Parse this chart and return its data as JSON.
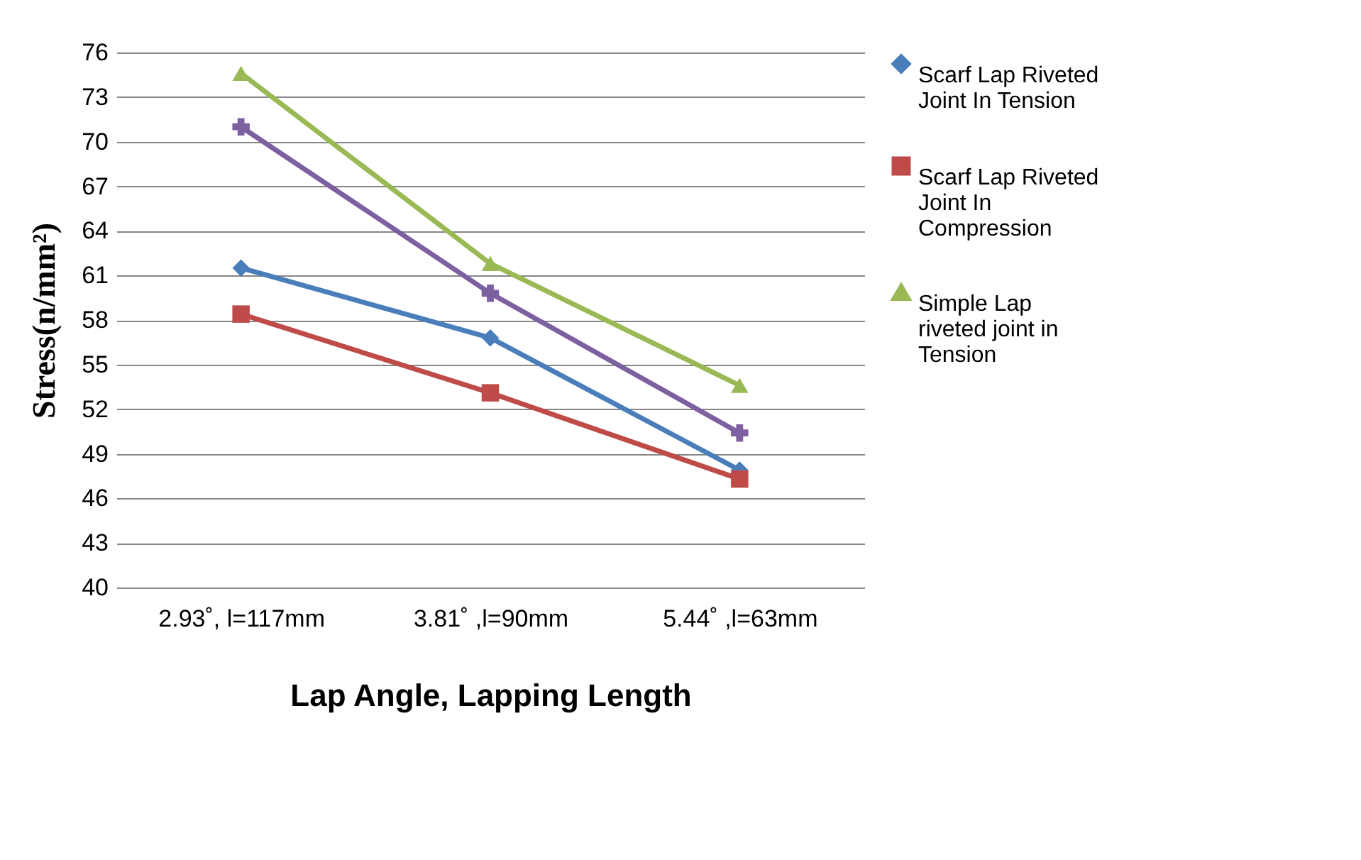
{
  "chart_data": {
    "type": "line",
    "xlabel": "Lap Angle, Lapping Length",
    "ylabel": "Stress(n/mm²)",
    "categories": [
      "2.93˚, l=117mm",
      "3.81˚ ,l=90mm",
      "5.44˚ ,l=63mm"
    ],
    "series": [
      {
        "name": "Scarf Lap Riveted Joint In Tension",
        "color": "#4a7ebb",
        "marker": "diamond",
        "values": [
          61.5,
          56.8,
          47.9
        ]
      },
      {
        "name": "Scarf Lap Riveted Joint In Compression",
        "color": "#be4b48",
        "marker": "square",
        "values": [
          58.4,
          53.1,
          47.3
        ]
      },
      {
        "name": "Simple Lap riveted joint in Tension",
        "color": "#98b954",
        "marker": "triangle",
        "values": [
          74.6,
          61.8,
          53.6
        ]
      },
      {
        "color": "#7d60a0",
        "marker": "cross",
        "values": [
          71.0,
          59.8,
          50.4
        ]
      }
    ],
    "ylim": [
      40,
      76
    ],
    "yticks": [
      40,
      43,
      46,
      49,
      52,
      55,
      58,
      61,
      64,
      67,
      70,
      73,
      76
    ],
    "grid": "y",
    "legend": "right"
  }
}
